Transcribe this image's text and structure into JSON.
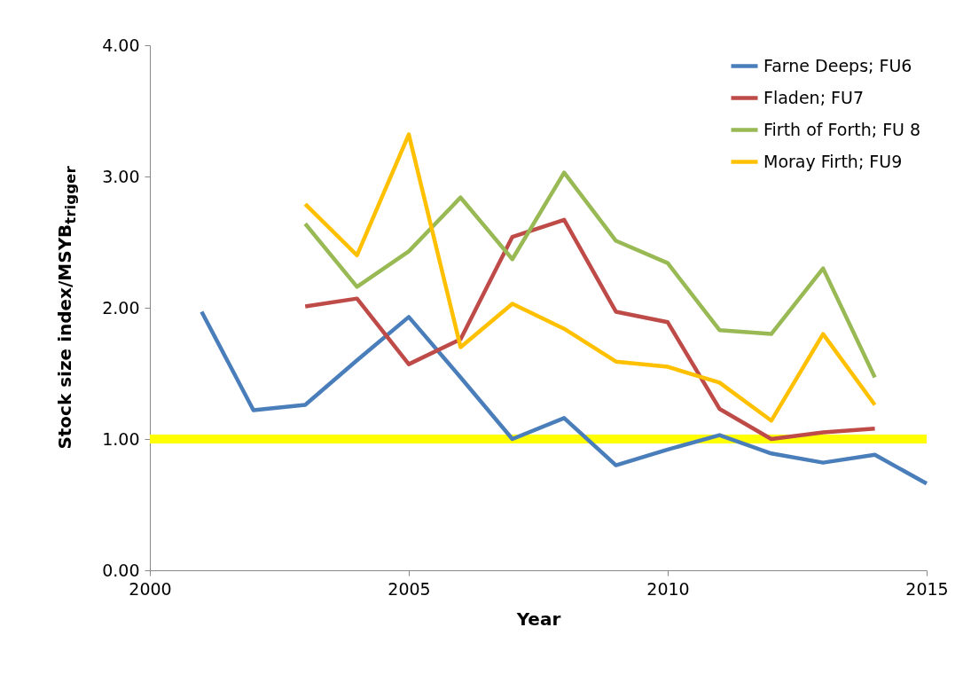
{
  "chart_data": {
    "type": "line",
    "xlabel": "Year",
    "ylabel": "Stock size index/MSYB$_{trigger}$",
    "x": [
      2001,
      2002,
      2003,
      2004,
      2005,
      2006,
      2007,
      2008,
      2009,
      2010,
      2011,
      2012,
      2013,
      2014,
      2015
    ],
    "series": [
      {
        "name": "Farne Deeps; FU6",
        "color": "#4a7ebb",
        "values": [
          1.97,
          1.22,
          1.26,
          1.6,
          1.93,
          1.47,
          1.0,
          1.16,
          0.8,
          0.92,
          1.03,
          0.89,
          0.82,
          0.88,
          0.66
        ]
      },
      {
        "name": "Fladen; FU7",
        "color": "#be4b48",
        "values": [
          null,
          null,
          2.01,
          2.07,
          1.57,
          1.76,
          2.54,
          2.67,
          1.97,
          1.89,
          1.23,
          1.0,
          1.05,
          1.08,
          null
        ]
      },
      {
        "name": "Firth of Forth; FU 8",
        "color": "#98b954",
        "values": [
          null,
          null,
          2.64,
          2.16,
          2.43,
          2.84,
          2.37,
          3.03,
          2.51,
          2.34,
          1.83,
          1.8,
          2.3,
          1.47,
          null
        ]
      },
      {
        "name": "Moray Firth; FU9",
        "color": "#ffc000",
        "values": [
          null,
          null,
          2.79,
          2.4,
          3.32,
          1.7,
          2.03,
          1.84,
          1.59,
          1.55,
          1.43,
          1.14,
          1.8,
          1.26,
          null
        ]
      }
    ],
    "xlim": [
      2000,
      2015
    ],
    "xticks": [
      2000,
      2005,
      2010,
      2015
    ],
    "ylim": [
      0,
      4
    ],
    "yticks": [
      {
        "value": 0,
        "label": "0.00"
      },
      {
        "value": 1,
        "label": "1.00"
      },
      {
        "value": 2,
        "label": "2.00"
      },
      {
        "value": 3,
        "label": "3.00"
      },
      {
        "value": 4,
        "label": "4.00"
      }
    ],
    "ref_lines": [
      {
        "axis": "y",
        "value": 1,
        "color": "#ffff00"
      }
    ],
    "grid": false,
    "legend": "top right",
    "marker": "none",
    "line_style": "solid"
  }
}
